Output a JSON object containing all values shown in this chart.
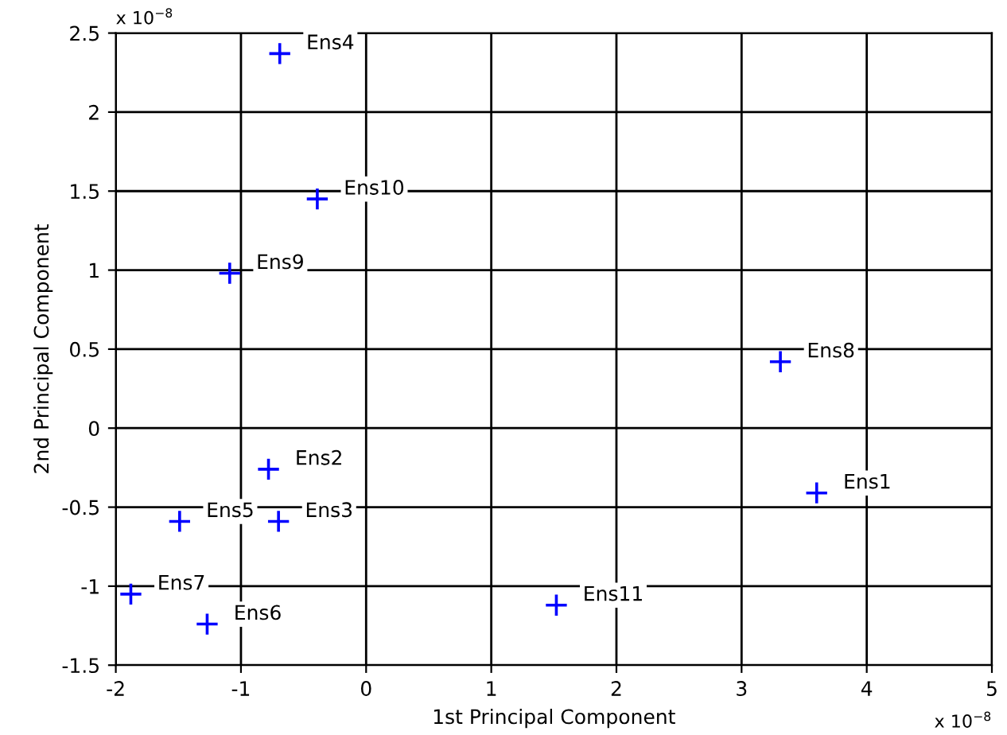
{
  "chart_data": {
    "type": "scatter",
    "xlabel": "1st Principal Component",
    "ylabel": "2nd Principal Component",
    "x": [
      -0.69,
      -0.39,
      -1.09,
      3.31,
      3.6,
      -0.78,
      -0.7,
      -1.49,
      -1.88,
      -1.27,
      1.52
    ],
    "series": [
      {
        "color": "#0000ff",
        "values": [
          2.37,
          1.45,
          0.98,
          0.42,
          -0.41,
          -0.26,
          -0.59,
          -0.59,
          -1.05,
          -1.24,
          -1.12
        ]
      }
    ],
    "marker": "cross",
    "grid": true,
    "xlim": [
      -2,
      5
    ],
    "xticks": [
      -2,
      -1,
      0,
      1,
      2,
      3,
      4,
      5
    ],
    "ylim": [
      -1.5,
      2.5
    ],
    "yticks": [
      -1.5,
      -1,
      -0.5,
      0,
      0.5,
      1,
      1.5,
      2,
      2.5
    ],
    "annotations": [
      {
        "text": "Ens4",
        "x": -0.69,
        "y": 2.37
      },
      {
        "text": "Ens10",
        "x": -0.39,
        "y": 1.45
      },
      {
        "text": "Ens9",
        "x": -1.09,
        "y": 0.98
      },
      {
        "text": "Ens8",
        "x": 3.31,
        "y": 0.42
      },
      {
        "text": "Ens1",
        "x": 3.6,
        "y": -0.41
      },
      {
        "text": "Ens2",
        "x": -0.78,
        "y": -0.26
      },
      {
        "text": "Ens3",
        "x": -0.7,
        "y": -0.59
      },
      {
        "text": "Ens5",
        "x": -1.49,
        "y": -0.59
      },
      {
        "text": "Ens7",
        "x": -1.88,
        "y": -1.05
      },
      {
        "text": "Ens6",
        "x": -1.27,
        "y": -1.24
      },
      {
        "text": "Ens11",
        "x": 1.52,
        "y": -1.12
      },
      "x 10$^{−8}$",
      "x 10$^{−8}$"
    ]
  }
}
